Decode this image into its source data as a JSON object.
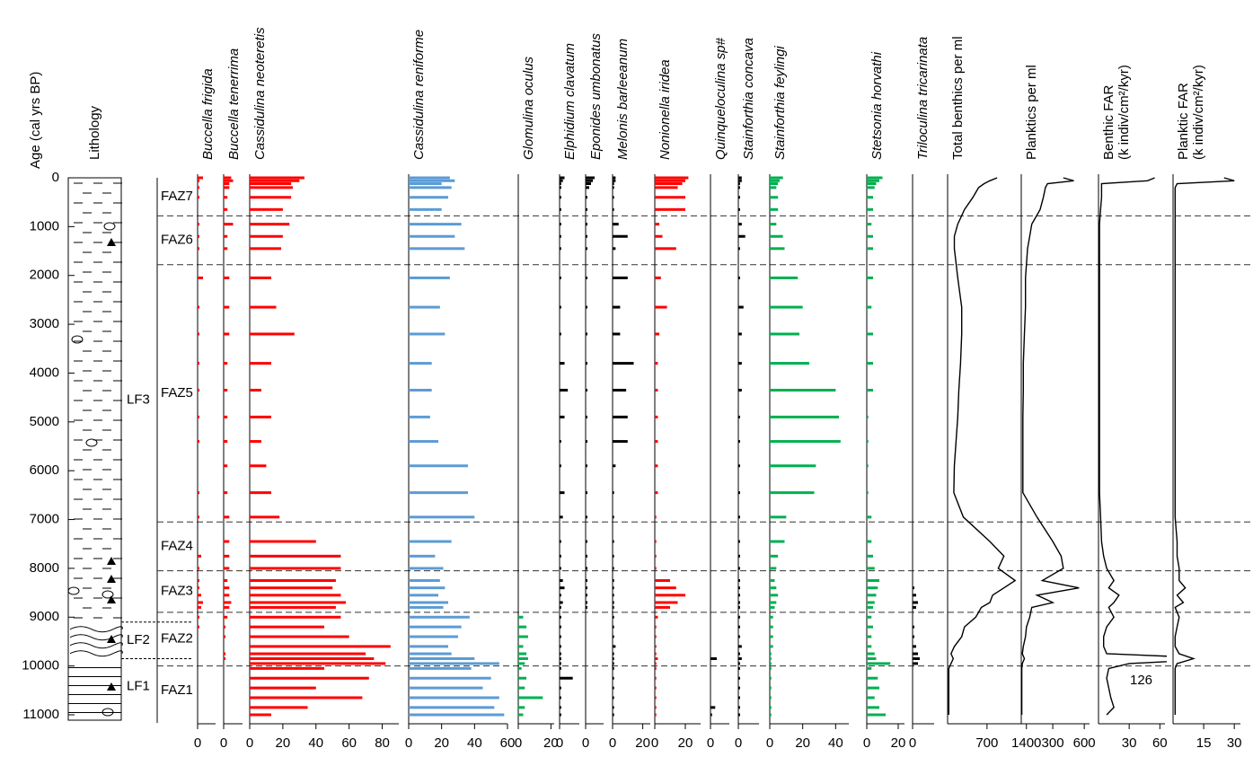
{
  "chart_data": {
    "type": "stratigraphic",
    "y_title": "Age (cal yrs BP)",
    "lithology_title": "Lithology",
    "ylim": [
      0,
      11000
    ],
    "yticks": [
      0,
      1000,
      2000,
      3000,
      4000,
      5000,
      6000,
      7000,
      8000,
      9000,
      10000,
      11000
    ],
    "y": [
      0,
      60,
      120,
      200,
      400,
      650,
      950,
      1200,
      1450,
      2050,
      2650,
      3200,
      3800,
      4350,
      4900,
      5400,
      5900,
      6450,
      6950,
      7450,
      7750,
      8000,
      8250,
      8400,
      8550,
      8700,
      8800,
      9000,
      9200,
      9400,
      9600,
      9750,
      9850,
      9950,
      10050,
      10250,
      10450,
      10650,
      10850,
      11000
    ],
    "lithofacies": [
      "LF3",
      "LF2",
      "LF1"
    ],
    "lithofacies_boundaries": [
      9100,
      9850
    ],
    "zones": [
      "FAZ7",
      "FAZ6",
      "FAZ5",
      "FAZ4",
      "FAZ3",
      "FAZ2",
      "FAZ1"
    ],
    "zone_boundaries": [
      780,
      1780,
      7050,
      8050,
      8900,
      10000
    ],
    "annotation": "126",
    "series": [
      {
        "name": "Buccella frigida",
        "type": "bar",
        "color": "#ff0000",
        "xlim": [
          0,
          10
        ],
        "xticks": [
          0
        ],
        "values": [
          3,
          1,
          0,
          1,
          1,
          0,
          1,
          1,
          1,
          3,
          1,
          1,
          1,
          1,
          1,
          1,
          0,
          1,
          1,
          0,
          2,
          1,
          1,
          1,
          2,
          3,
          2,
          1,
          1,
          0,
          0,
          0,
          0,
          0,
          0,
          0,
          0,
          0,
          0,
          0
        ]
      },
      {
        "name": "Buccella tenerrima",
        "type": "bar",
        "color": "#ff0000",
        "xlim": [
          0,
          10
        ],
        "xticks": [
          0
        ],
        "values": [
          4,
          5,
          3,
          3,
          2,
          2,
          5,
          2,
          2,
          3,
          3,
          3,
          2,
          2,
          2,
          2,
          2,
          2,
          3,
          3,
          3,
          3,
          2,
          3,
          3,
          4,
          3,
          2,
          1,
          1,
          0,
          1,
          1,
          0,
          0,
          0,
          0,
          0,
          0,
          0
        ]
      },
      {
        "name": "Cassidulina neoteretis",
        "type": "bar",
        "color": "#ff0000",
        "xlim": [
          0,
          90
        ],
        "xticks": [
          0,
          20,
          40,
          60,
          80
        ],
        "values": [
          33,
          30,
          25,
          26,
          25,
          20,
          24,
          20,
          19,
          13,
          16,
          27,
          13,
          7,
          13,
          7,
          10,
          13,
          18,
          40,
          55,
          55,
          52,
          50,
          55,
          58,
          52,
          55,
          45,
          60,
          85,
          70,
          75,
          82,
          45,
          72,
          40,
          68,
          35,
          13
        ]
      },
      {
        "name": "Cassidulina reniforme",
        "type": "bar",
        "color": "#5b9bd5",
        "xlim": [
          0,
          60
        ],
        "xticks": [
          0,
          20,
          40,
          60
        ],
        "values": [
          25,
          28,
          20,
          26,
          24,
          20,
          32,
          28,
          34,
          25,
          19,
          22,
          14,
          14,
          13,
          18,
          36,
          36,
          40,
          26,
          16,
          21,
          19,
          22,
          18,
          24,
          21,
          37,
          32,
          30,
          24,
          26,
          40,
          55,
          38,
          50,
          45,
          55,
          52,
          58
        ]
      },
      {
        "name": "Glomulina oculus",
        "type": "bar",
        "color": "#00b050",
        "xlim": [
          0,
          22
        ],
        "xticks": [
          0,
          20
        ],
        "values": [
          0,
          0,
          0,
          0,
          0,
          0,
          0,
          0,
          0,
          0,
          0,
          0,
          0,
          0,
          0,
          0,
          0,
          0,
          0,
          0,
          0,
          0,
          0,
          0,
          0,
          0,
          0,
          3,
          5,
          6,
          3,
          5,
          6,
          4,
          2,
          5,
          4,
          15,
          4,
          3
        ]
      },
      {
        "name": "Elphidium clavatum",
        "type": "bar",
        "color": "#000000",
        "xlim": [
          0,
          12
        ],
        "xticks": [
          0
        ],
        "values": [
          3,
          2,
          1,
          1,
          1,
          1,
          1,
          1,
          1,
          1,
          1,
          1,
          3,
          5,
          3,
          1,
          1,
          3,
          2,
          1,
          1,
          1,
          2,
          3,
          1,
          2,
          1,
          1,
          1,
          1,
          1,
          1,
          1,
          1,
          1,
          8,
          1,
          1,
          1,
          1
        ]
      },
      {
        "name": "Eponides umbonatus",
        "type": "bar",
        "color": "#000000",
        "xlim": [
          0,
          10
        ],
        "xticks": [
          0
        ],
        "values": [
          5,
          4,
          3,
          2,
          1,
          1,
          1,
          1,
          1,
          1,
          1,
          1,
          1,
          1,
          1,
          1,
          1,
          1,
          1,
          1,
          1,
          1,
          1,
          1,
          1,
          1,
          1,
          0,
          0,
          0,
          0,
          0,
          0,
          0,
          0,
          0,
          0,
          0,
          0,
          0
        ]
      },
      {
        "name": "Melonis barleeanum",
        "type": "bar",
        "color": "#000000",
        "xlim": [
          0,
          25
        ],
        "xticks": [
          0,
          20
        ],
        "values": [
          2,
          2,
          1,
          1,
          1,
          1,
          4,
          10,
          2,
          10,
          5,
          5,
          14,
          9,
          10,
          10,
          2,
          1,
          1,
          1,
          1,
          1,
          1,
          1,
          1,
          1,
          1,
          1,
          1,
          1,
          2,
          1,
          1,
          1,
          1,
          1,
          1,
          1,
          1,
          1
        ]
      },
      {
        "name": "Nonionella iridea",
        "type": "bar",
        "color": "#ff0000",
        "xlim": [
          0,
          30
        ],
        "xticks": [
          0,
          20
        ],
        "values": [
          22,
          20,
          18,
          15,
          20,
          20,
          3,
          5,
          14,
          4,
          8,
          3,
          2,
          2,
          2,
          2,
          2,
          2,
          1,
          1,
          1,
          1,
          10,
          14,
          20,
          15,
          10,
          2,
          1,
          1,
          1,
          1,
          2,
          1,
          1,
          1,
          1,
          1,
          1,
          1
        ]
      },
      {
        "name": "Quinqueloculina sp#",
        "type": "bar",
        "color": "#000000",
        "xlim": [
          0,
          12
        ],
        "xticks": [
          0
        ],
        "values": [
          0,
          0,
          0,
          0,
          0,
          0,
          0,
          0,
          0,
          0,
          0,
          0,
          0,
          0,
          0,
          0,
          0,
          0,
          0,
          0,
          0,
          0,
          0,
          0,
          0,
          0,
          0,
          0,
          0,
          0,
          0,
          0,
          4,
          0,
          0,
          0,
          0,
          0,
          3,
          1
        ]
      },
      {
        "name": "Stainforthia concava",
        "type": "bar",
        "color": "#000000",
        "xlim": [
          0,
          12
        ],
        "xticks": [
          0
        ],
        "values": [
          2,
          2,
          1,
          1,
          1,
          1,
          2,
          4,
          1,
          1,
          3,
          2,
          2,
          2,
          1,
          1,
          1,
          1,
          1,
          1,
          1,
          1,
          1,
          1,
          1,
          1,
          1,
          1,
          1,
          1,
          2,
          1,
          2,
          1,
          1,
          1,
          1,
          1,
          1,
          1
        ]
      },
      {
        "name": "Stainforthia feylingi",
        "type": "bar",
        "color": "#00b050",
        "xlim": [
          0,
          48
        ],
        "xticks": [
          0,
          20,
          40
        ],
        "values": [
          8,
          6,
          5,
          4,
          5,
          5,
          4,
          8,
          9,
          17,
          20,
          18,
          24,
          40,
          42,
          43,
          28,
          27,
          10,
          9,
          5,
          4,
          3,
          4,
          5,
          4,
          3,
          2,
          2,
          2,
          2,
          1,
          1,
          1,
          1,
          1,
          1,
          1,
          1,
          1
        ]
      },
      {
        "name": "Stetsonia horvathi",
        "type": "bar",
        "color": "#00b050",
        "xlim": [
          0,
          24
        ],
        "xticks": [
          0,
          20
        ],
        "values": [
          10,
          8,
          6,
          5,
          4,
          4,
          3,
          4,
          4,
          4,
          3,
          4,
          4,
          4,
          1,
          1,
          1,
          1,
          3,
          3,
          4,
          5,
          8,
          7,
          6,
          5,
          4,
          3,
          4,
          3,
          3,
          5,
          6,
          15,
          3,
          7,
          8,
          5,
          8,
          12
        ]
      },
      {
        "name": "Triloculina tricarinata",
        "type": "bar",
        "color": "#000000",
        "xlim": [
          0,
          12
        ],
        "xticks": [
          0
        ],
        "values": [
          0,
          0,
          0,
          0,
          0,
          0,
          0,
          0,
          0,
          0,
          0,
          0,
          0,
          0,
          0,
          0,
          0,
          0,
          0,
          0,
          0,
          0,
          0,
          1,
          2,
          3,
          2,
          0,
          1,
          1,
          2,
          3,
          4,
          3,
          0,
          0,
          0,
          0,
          0,
          0
        ]
      },
      {
        "name": "Total benthics per ml",
        "type": "line",
        "color": "#000000",
        "xlim": [
          0,
          1500
        ],
        "xticks": [
          700,
          1400
        ],
        "values": [
          880,
          750,
          650,
          550,
          450,
          300,
          180,
          120,
          120,
          180,
          250,
          250,
          230,
          200,
          180,
          150,
          120,
          110,
          280,
          750,
          1000,
          900,
          1200,
          1000,
          800,
          750,
          600,
          500,
          300,
          250,
          120,
          60,
          100,
          60,
          20,
          20,
          20,
          20,
          20,
          20
        ]
      },
      {
        "name": "Planktics per ml",
        "type": "line",
        "color": "#000000",
        "xlim": [
          0,
          650
        ],
        "xticks": [
          300,
          600
        ],
        "values": [
          400,
          500,
          250,
          230,
          210,
          180,
          100,
          80,
          60,
          40,
          40,
          30,
          20,
          20,
          15,
          15,
          15,
          15,
          150,
          300,
          380,
          400,
          200,
          550,
          150,
          300,
          100,
          80,
          50,
          40,
          20,
          10,
          30,
          10,
          5,
          5,
          5,
          5,
          5,
          5
        ]
      },
      {
        "name": "Benthic FAR",
        "unit": "(k indiv/cm²/kyr)",
        "type": "line",
        "color": "#000000",
        "xlim": [
          0,
          65
        ],
        "xticks": [
          30,
          60
        ],
        "values": [
          55,
          48,
          3,
          3,
          3,
          2,
          1,
          1,
          1,
          1,
          1,
          1,
          1,
          1,
          1,
          1,
          1,
          1,
          2,
          3,
          5,
          8,
          15,
          10,
          20,
          15,
          10,
          15,
          8,
          5,
          5,
          8,
          126,
          30,
          10,
          8,
          10,
          12,
          15,
          8
        ]
      },
      {
        "name": "Planktic FAR",
        "unit": "(k indiv/cm²/kyr)",
        "type": "line",
        "color": "#000000",
        "xlim": [
          0,
          33
        ],
        "xticks": [
          15,
          30
        ],
        "values": [
          25,
          30,
          2,
          1,
          1,
          1,
          1,
          1,
          1,
          1,
          1,
          1,
          1,
          1,
          1,
          1,
          1,
          1,
          1,
          2,
          2,
          3,
          3,
          6,
          2,
          5,
          1,
          3,
          2,
          1,
          1,
          3,
          10,
          2,
          1,
          1,
          1,
          1,
          1,
          1
        ]
      }
    ]
  }
}
